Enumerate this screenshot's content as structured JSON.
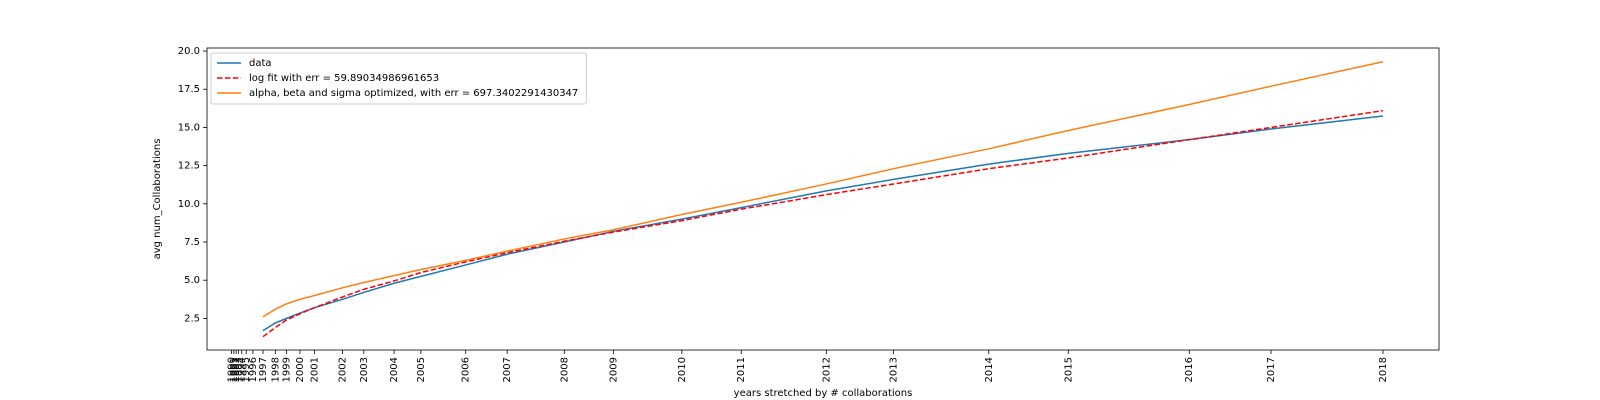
{
  "chart_data": {
    "type": "line",
    "xlabel": "years stretched by # collaborations",
    "ylabel": "avg num_Collaborations",
    "x": [
      0,
      1.1,
      2.1,
      3.3,
      4.6,
      7.1,
      9.0,
      11.7,
      14.1,
      18.1,
      21.8,
      26.9,
      31.3,
      37.4,
      42.7,
      50.3,
      56.3,
      64.8,
      71.9,
      82.7,
      90.0,
      100
    ],
    "series": [
      {
        "name": "data",
        "color": "#1f77b4",
        "linestyle": "solid",
        "values": [
          1.7,
          2.2,
          2.5,
          2.85,
          3.2,
          3.75,
          4.2,
          4.8,
          5.25,
          6.0,
          6.7,
          7.5,
          8.2,
          9.0,
          9.75,
          10.85,
          11.6,
          12.6,
          13.3,
          14.2,
          14.9,
          15.75
        ]
      },
      {
        "name": "log fit with err = 59.89034986961653",
        "color": "#ff0000",
        "linestyle": "dashed",
        "values": [
          1.3,
          1.9,
          2.4,
          2.8,
          3.2,
          3.9,
          4.4,
          4.95,
          5.5,
          6.2,
          6.8,
          7.55,
          8.15,
          8.9,
          9.65,
          10.6,
          11.3,
          12.3,
          13.0,
          14.2,
          15.0,
          16.1
        ]
      },
      {
        "name": "alpha, beta and sigma optimized, with err = 697.3402291430347",
        "color": "#ff7f0e",
        "linestyle": "solid",
        "values": [
          2.6,
          3.1,
          3.45,
          3.75,
          4.0,
          4.5,
          4.85,
          5.3,
          5.7,
          6.3,
          6.9,
          7.7,
          8.3,
          9.3,
          10.1,
          11.3,
          12.3,
          13.6,
          14.8,
          16.5,
          17.7,
          19.3
        ]
      }
    ],
    "xlim": [
      -5,
      105
    ],
    "xticks": [
      {
        "value": -2.8,
        "label": "1990"
      },
      {
        "value": -2.6,
        "label": "1991"
      },
      {
        "value": -2.4,
        "label": "1992"
      },
      {
        "value": -2.2,
        "label": "1993"
      },
      {
        "value": -1.9,
        "label": "1994"
      },
      {
        "value": -1.5,
        "label": "1995"
      },
      {
        "value": -0.9,
        "label": "1996"
      },
      {
        "value": 0,
        "label": "1997"
      },
      {
        "value": 1.1,
        "label": "1998"
      },
      {
        "value": 2.1,
        "label": "1999"
      },
      {
        "value": 3.3,
        "label": "2000"
      },
      {
        "value": 4.6,
        "label": "2001"
      },
      {
        "value": 7.1,
        "label": "2002"
      },
      {
        "value": 9.0,
        "label": "2003"
      },
      {
        "value": 11.7,
        "label": "2004"
      },
      {
        "value": 14.1,
        "label": "2005"
      },
      {
        "value": 18.1,
        "label": "2006"
      },
      {
        "value": 21.8,
        "label": "2007"
      },
      {
        "value": 26.9,
        "label": "2008"
      },
      {
        "value": 31.3,
        "label": "2009"
      },
      {
        "value": 37.4,
        "label": "2010"
      },
      {
        "value": 42.7,
        "label": "2011"
      },
      {
        "value": 50.3,
        "label": "2012"
      },
      {
        "value": 56.3,
        "label": "2013"
      },
      {
        "value": 64.8,
        "label": "2014"
      },
      {
        "value": 71.9,
        "label": "2015"
      },
      {
        "value": 82.7,
        "label": "2016"
      },
      {
        "value": 90.0,
        "label": "2017"
      },
      {
        "value": 100,
        "label": "2018"
      }
    ],
    "ylim": [
      0.43,
      20.2
    ],
    "yticks": [
      2.5,
      {
        "value": 5,
        "label": "5.0"
      },
      7.5,
      {
        "value": 10,
        "label": "10.0"
      },
      12.5,
      {
        "value": 15,
        "label": "15.0"
      },
      17.5,
      {
        "value": 20,
        "label": "20.0"
      }
    ],
    "grid": false,
    "legend": "upper left"
  }
}
